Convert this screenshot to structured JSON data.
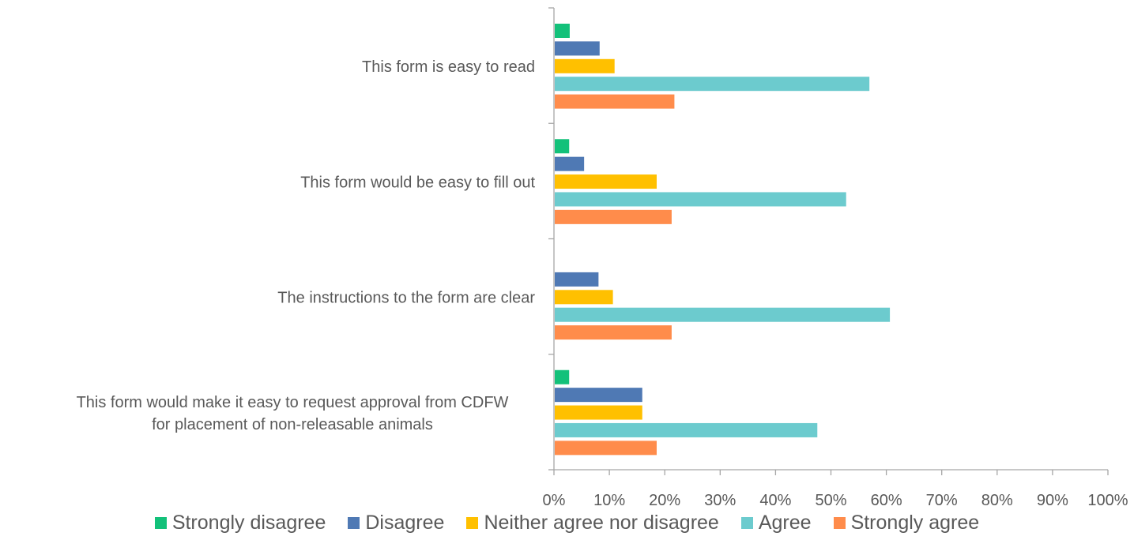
{
  "chart_data": {
    "type": "bar",
    "orientation": "horizontal",
    "categories": [
      [
        "This form is easy to read"
      ],
      [
        "This form would be easy to fill out"
      ],
      [
        "The instructions to the form are clear"
      ],
      [
        "This form would make it easy to request approval from CDFW",
        "for placement of non-releasable animals"
      ]
    ],
    "series": [
      {
        "name": "Strongly disagree",
        "color": "#13c17a",
        "values": [
          2.7,
          2.6,
          0,
          2.6
        ]
      },
      {
        "name": "Disagree",
        "color": "#4f79b4",
        "values": [
          8.1,
          5.3,
          7.9,
          15.8
        ]
      },
      {
        "name": "Neither agree nor disagree",
        "color": "#ffc000",
        "values": [
          10.8,
          18.4,
          10.5,
          15.8
        ]
      },
      {
        "name": "Agree",
        "color": "#6ccbce",
        "values": [
          56.8,
          52.6,
          60.5,
          47.4
        ]
      },
      {
        "name": "Strongly agree",
        "color": "#ff8c4b",
        "values": [
          21.6,
          21.1,
          21.1,
          18.4
        ]
      }
    ],
    "xlim": [
      0,
      100
    ],
    "ticks": [
      "0%",
      "10%",
      "20%",
      "30%",
      "40%",
      "50%",
      "60%",
      "70%",
      "80%",
      "90%",
      "100%"
    ],
    "legend_position": "bottom",
    "grid": false
  }
}
